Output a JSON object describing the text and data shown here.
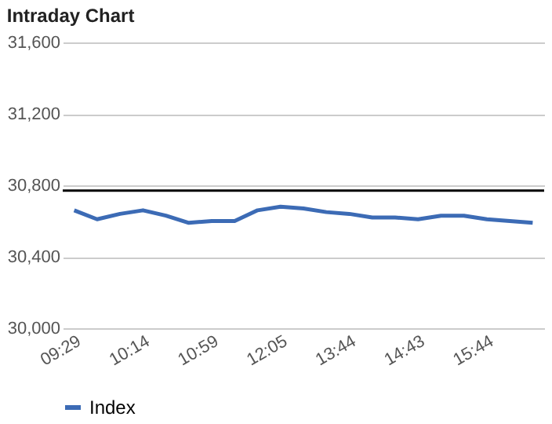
{
  "chart_data": {
    "type": "line",
    "title": "Intraday Chart",
    "categories": [
      "09:29",
      null,
      null,
      "10:14",
      null,
      null,
      "10:59",
      null,
      null,
      "12:05",
      null,
      null,
      "13:44",
      null,
      null,
      "14:43",
      null,
      null,
      "15:44",
      null,
      null
    ],
    "series": [
      {
        "name": "Index",
        "color": "#3c6bb5",
        "values": [
          30660,
          30610,
          30640,
          30660,
          30630,
          30590,
          30600,
          30600,
          30660,
          30680,
          30670,
          30650,
          30640,
          30620,
          30620,
          30610,
          30630,
          30630,
          30610,
          30600,
          30590
        ]
      }
    ],
    "ylim": [
      30000,
      31600
    ],
    "yticks": [
      {
        "value": 30000,
        "label": "30,000"
      },
      {
        "value": 30400,
        "label": "30,400"
      },
      {
        "value": 30800,
        "label": "30,800"
      },
      {
        "value": 31200,
        "label": "31,200"
      },
      {
        "value": 31600,
        "label": "31,600"
      }
    ],
    "ref_lines": [
      {
        "axis": "y",
        "value": 30770,
        "color": "#000000"
      }
    ],
    "grid": "y",
    "legend": "bottom",
    "marker": "none",
    "line_style": "solid"
  }
}
